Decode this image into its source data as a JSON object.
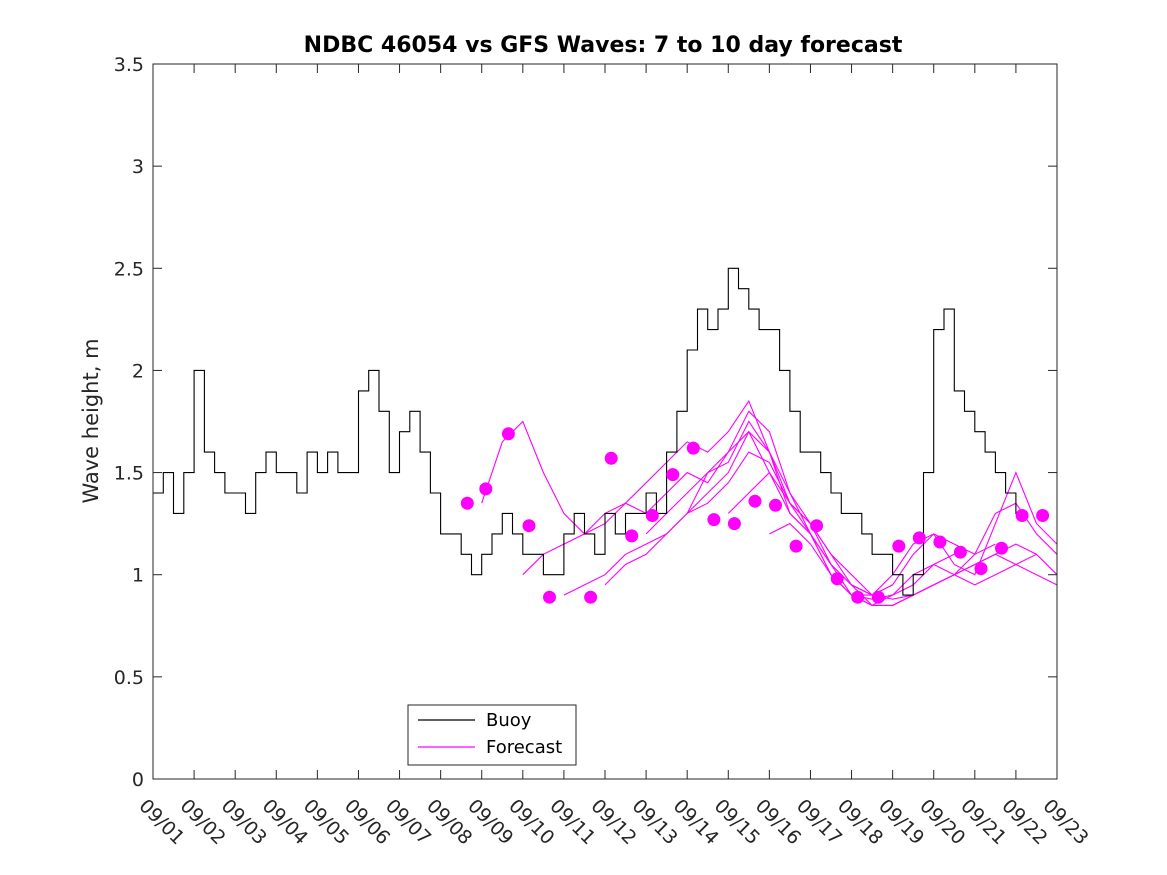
{
  "chart_data": {
    "type": "line",
    "title": "NDBC 46054 vs GFS Waves: 7 to 10 day forecast",
    "xlabel": "",
    "ylabel": "Wave height, m",
    "ylim": [
      0,
      3.5
    ],
    "xlim": [
      1,
      23
    ],
    "x_units": "day of month (September)",
    "ytick_values": [
      0,
      0.5,
      1,
      1.5,
      2,
      2.5,
      3,
      3.5
    ],
    "ytick_labels": [
      "0",
      "0.5",
      "1",
      "1.5",
      "2",
      "2.5",
      "3",
      "3.5"
    ],
    "xtick_values": [
      1,
      2,
      3,
      4,
      5,
      6,
      7,
      8,
      9,
      10,
      11,
      12,
      13,
      14,
      15,
      16,
      17,
      18,
      19,
      20,
      21,
      22,
      23
    ],
    "xtick_labels": [
      "09/01",
      "09/02",
      "09/03",
      "09/04",
      "09/05",
      "09/06",
      "09/07",
      "09/08",
      "09/09",
      "09/10",
      "09/11",
      "09/12",
      "09/13",
      "09/14",
      "09/15",
      "09/16",
      "09/17",
      "09/18",
      "09/19",
      "09/20",
      "09/21",
      "09/22",
      "09/23"
    ],
    "grid": false,
    "legend_position": "bottom-left",
    "legend": [
      "Buoy",
      "Forecast"
    ],
    "colors": {
      "buoy": "#000000",
      "forecast": "#ff00ff"
    },
    "series": [
      {
        "name": "Buoy",
        "x": [
          1.0,
          1.25,
          1.5,
          1.75,
          2.0,
          2.25,
          2.5,
          2.75,
          3.0,
          3.25,
          3.5,
          3.75,
          4.0,
          4.25,
          4.5,
          4.75,
          5.0,
          5.25,
          5.5,
          5.75,
          6.0,
          6.25,
          6.5,
          6.75,
          7.0,
          7.25,
          7.5,
          7.75,
          8.0,
          8.25,
          8.5,
          8.75,
          9.0,
          9.25,
          9.5,
          9.75,
          10.0,
          10.25,
          10.5,
          10.75,
          11.0,
          11.25,
          11.5,
          11.75,
          12.0,
          12.25,
          12.5,
          12.75,
          13.0,
          13.25,
          13.5,
          13.75,
          14.0,
          14.25,
          14.5,
          14.75,
          15.0,
          15.25,
          15.5,
          15.75,
          16.0,
          16.25,
          16.5,
          16.75,
          17.0,
          17.25,
          17.5,
          17.75,
          18.0,
          18.25,
          18.5,
          18.75,
          19.0,
          19.25,
          19.5,
          19.75,
          20.0,
          20.25,
          20.5,
          20.75,
          21.0,
          21.25,
          21.5,
          21.75,
          22.0,
          22.25
        ],
        "values": [
          1.4,
          1.5,
          1.3,
          1.5,
          2.0,
          1.6,
          1.5,
          1.4,
          1.4,
          1.3,
          1.5,
          1.6,
          1.5,
          1.5,
          1.4,
          1.6,
          1.5,
          1.6,
          1.5,
          1.5,
          1.9,
          2.0,
          1.8,
          1.5,
          1.7,
          1.8,
          1.6,
          1.4,
          1.2,
          1.2,
          1.1,
          1.0,
          1.1,
          1.2,
          1.3,
          1.2,
          1.1,
          1.1,
          1.0,
          1.0,
          1.2,
          1.3,
          1.2,
          1.1,
          1.3,
          1.2,
          1.3,
          1.3,
          1.4,
          1.3,
          1.6,
          1.8,
          2.1,
          2.3,
          2.2,
          2.3,
          2.5,
          2.4,
          2.3,
          2.2,
          2.2,
          2.0,
          1.8,
          1.6,
          1.6,
          1.5,
          1.4,
          1.3,
          1.3,
          1.2,
          1.1,
          1.1,
          1.0,
          0.9,
          1.0,
          1.5,
          2.2,
          2.3,
          1.9,
          1.8,
          1.7,
          1.6,
          1.5,
          1.4,
          1.3,
          1.3
        ]
      },
      {
        "name": "Forecast",
        "runs": [
          {
            "x": [
              9.0,
              9.5,
              10.0,
              10.5,
              11.0,
              11.5,
              12.0,
              12.5,
              13.0,
              13.5,
              14.0,
              14.5,
              15.0,
              15.5,
              16.0,
              16.5,
              17.0,
              17.5,
              18.0,
              18.5,
              19.0
            ],
            "values": [
              1.35,
              1.65,
              1.75,
              1.5,
              1.3,
              1.2,
              1.25,
              1.35,
              1.3,
              1.4,
              1.5,
              1.45,
              1.6,
              1.8,
              1.7,
              1.4,
              1.2,
              1.0,
              0.9,
              0.9,
              0.95
            ]
          },
          {
            "x": [
              10.0,
              10.5,
              11.0,
              11.5,
              12.0,
              12.5,
              13.0,
              13.5,
              14.0,
              14.5,
              15.0,
              15.5,
              16.0,
              16.5,
              17.0,
              17.5,
              18.0,
              18.5,
              19.0,
              19.5,
              20.0,
              20.5
            ],
            "values": [
              1.0,
              1.1,
              1.15,
              1.2,
              1.3,
              1.35,
              1.45,
              1.55,
              1.65,
              1.6,
              1.7,
              1.85,
              1.6,
              1.3,
              1.2,
              1.0,
              0.9,
              0.85,
              0.9,
              0.95,
              1.05,
              1.1
            ]
          },
          {
            "x": [
              11.0,
              11.5,
              12.0,
              12.5,
              13.0,
              13.5,
              14.0,
              14.5,
              15.0,
              15.5,
              16.0,
              16.5,
              17.0,
              17.5,
              18.0,
              18.5,
              19.0,
              19.5,
              20.0,
              20.5,
              21.0,
              21.5
            ],
            "values": [
              0.9,
              0.95,
              1.0,
              1.1,
              1.15,
              1.2,
              1.3,
              1.4,
              1.5,
              1.7,
              1.6,
              1.4,
              1.25,
              1.1,
              1.0,
              0.9,
              0.88,
              0.9,
              0.95,
              1.0,
              1.1,
              1.15
            ]
          },
          {
            "x": [
              12.0,
              12.5,
              13.0,
              13.5,
              14.0,
              14.5,
              15.0,
              15.5,
              16.0,
              16.5,
              17.0,
              17.5,
              18.0,
              18.5,
              19.0,
              19.5,
              20.0,
              20.5,
              21.0,
              21.5,
              22.0,
              22.5
            ],
            "values": [
              0.95,
              1.05,
              1.1,
              1.2,
              1.3,
              1.35,
              1.45,
              1.6,
              1.55,
              1.35,
              1.25,
              1.1,
              0.95,
              0.85,
              0.85,
              0.9,
              0.95,
              1.0,
              1.05,
              1.1,
              1.15,
              1.1
            ]
          },
          {
            "x": [
              13.0,
              13.5,
              14.0,
              14.5,
              15.0,
              15.5,
              16.0,
              16.5,
              17.0,
              17.5,
              18.0,
              18.5,
              19.0,
              19.5,
              20.0,
              20.5,
              21.0,
              21.5,
              22.0,
              22.5,
              23.0
            ],
            "values": [
              1.2,
              1.3,
              1.4,
              1.5,
              1.6,
              1.7,
              1.5,
              1.3,
              1.2,
              1.05,
              0.95,
              0.9,
              0.95,
              1.1,
              1.2,
              1.15,
              1.1,
              1.3,
              1.35,
              1.2,
              1.1
            ]
          },
          {
            "x": [
              14.0,
              14.5,
              15.0,
              15.5,
              16.0,
              16.5,
              17.0,
              17.5,
              18.0,
              18.5,
              19.0,
              19.5,
              20.0,
              20.5,
              21.0,
              21.5,
              22.0,
              22.5,
              23.0
            ],
            "values": [
              1.3,
              1.5,
              1.55,
              1.75,
              1.6,
              1.35,
              1.2,
              1.05,
              0.95,
              0.9,
              1.0,
              1.15,
              1.2,
              1.05,
              1.0,
              1.25,
              1.5,
              1.25,
              1.15
            ]
          },
          {
            "x": [
              15.0,
              15.5,
              16.0,
              16.5,
              17.0,
              17.5,
              18.0,
              18.5,
              19.0,
              19.5,
              20.0,
              20.5,
              21.0,
              21.5,
              22.0,
              22.5,
              23.0
            ],
            "values": [
              1.3,
              1.4,
              1.5,
              1.35,
              1.25,
              1.05,
              0.9,
              0.88,
              0.9,
              1.0,
              1.05,
              1.0,
              0.95,
              1.0,
              1.05,
              1.1,
              1.0
            ]
          },
          {
            "x": [
              16.0,
              16.5,
              17.0,
              17.5,
              18.0,
              18.5,
              19.0,
              19.5,
              20.0,
              20.5,
              21.0,
              21.5,
              22.0,
              22.5,
              23.0
            ],
            "values": [
              1.2,
              1.25,
              1.15,
              1.0,
              0.9,
              0.85,
              0.85,
              0.9,
              0.95,
              1.0,
              1.05,
              1.1,
              1.05,
              1.0,
              0.95
            ]
          }
        ],
        "markers": {
          "x": [
            8.65,
            9.1,
            9.65,
            10.15,
            10.65,
            11.65,
            12.15,
            12.65,
            13.15,
            13.65,
            14.15,
            14.65,
            15.15,
            15.65,
            16.15,
            16.65,
            17.15,
            17.65,
            18.15,
            18.65,
            19.15,
            19.65,
            20.15,
            20.65,
            21.15,
            21.65,
            22.15,
            22.65
          ],
          "values": [
            1.35,
            1.42,
            1.69,
            1.24,
            0.89,
            0.89,
            1.57,
            1.19,
            1.29,
            1.49,
            1.62,
            1.27,
            1.25,
            1.36,
            1.34,
            1.14,
            1.24,
            0.98,
            0.89,
            0.89,
            1.14,
            1.18,
            1.16,
            1.11,
            1.03,
            1.13,
            1.29,
            1.29
          ]
        }
      }
    ]
  }
}
